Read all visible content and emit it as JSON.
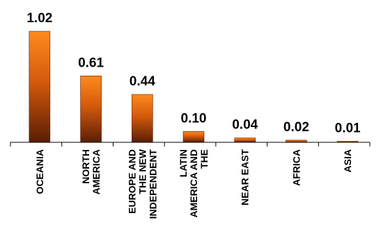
{
  "chart_data": {
    "type": "bar",
    "categories": [
      [
        "OCEANIA"
      ],
      [
        "NORTH",
        "AMERICA"
      ],
      [
        "EUROPE AND",
        "THE NEW",
        "INDEPENDENT"
      ],
      [
        "LATIN",
        "AMERICA AND",
        "THE"
      ],
      [
        "NEAR EAST"
      ],
      [
        "AFRICA"
      ],
      [
        "ASIA"
      ]
    ],
    "values": [
      1.02,
      0.61,
      0.44,
      0.1,
      0.04,
      0.02,
      0.01
    ],
    "value_labels": [
      "1.02",
      "0.61",
      "0.44",
      "0.10",
      "0.04",
      "0.02",
      "0.01"
    ],
    "title": "",
    "xlabel": "",
    "ylabel": "",
    "ylim": [
      0,
      1.02
    ],
    "grid": false,
    "legend": "none",
    "colors": {
      "bar_top": "#ff8a1e",
      "bar_mid": "#d45a0c",
      "bar_bottom": "#5a1e05",
      "axis": "#000000"
    }
  }
}
